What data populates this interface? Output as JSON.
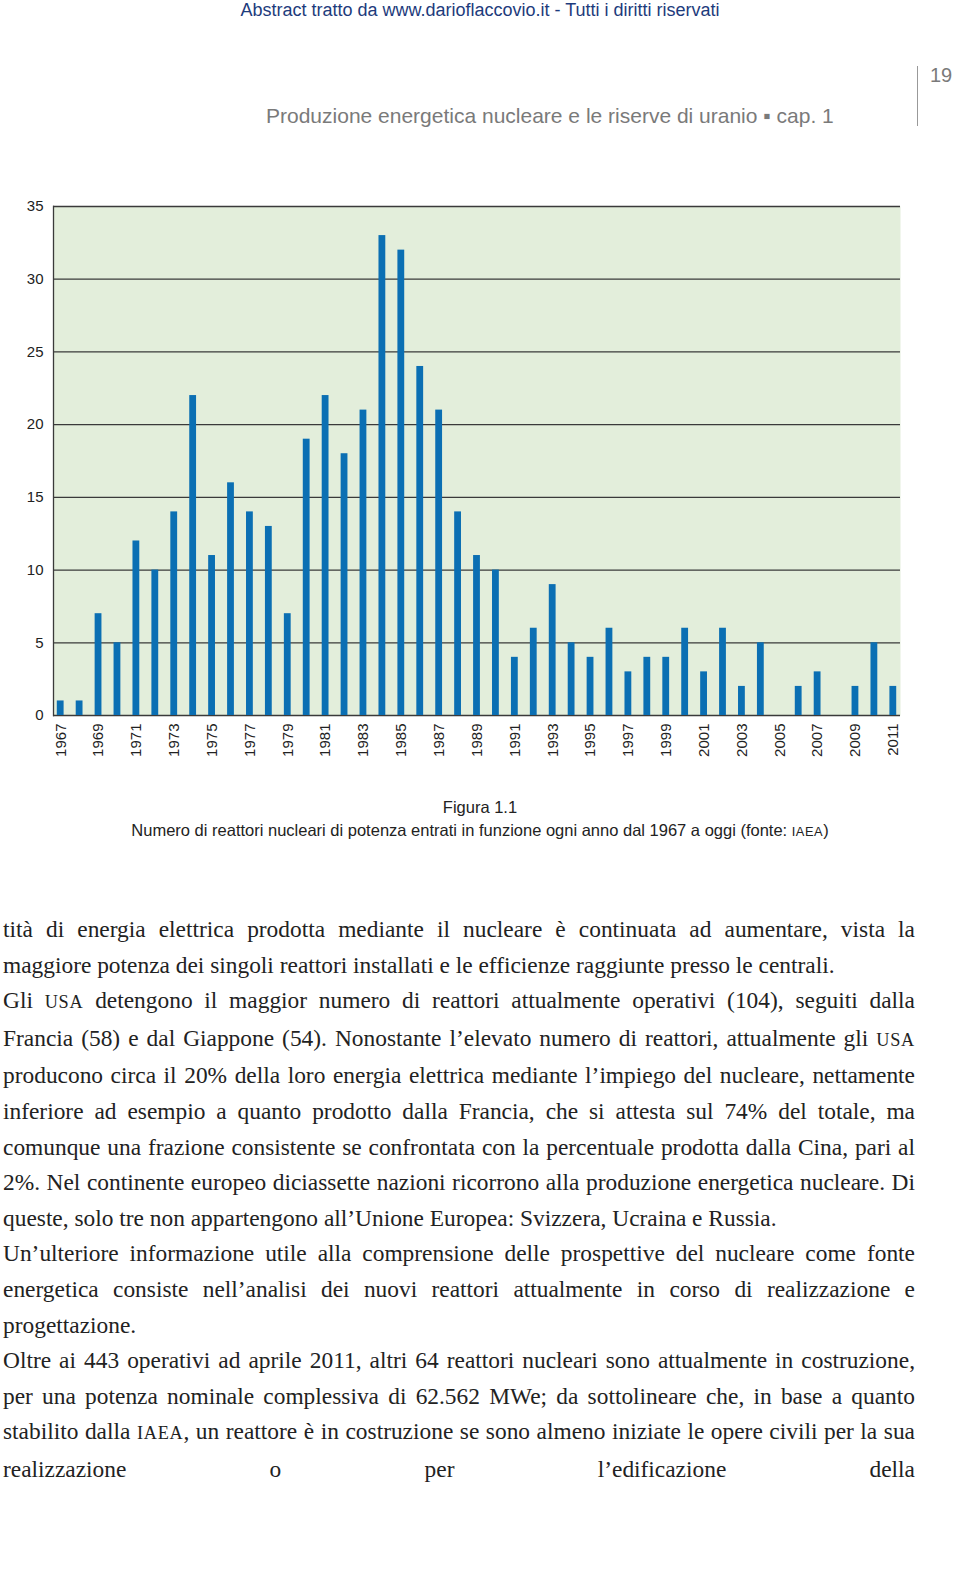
{
  "header": {
    "source": "Abstract tratto da www.darioflaccovio.it - Tutti i diritti riservati",
    "running_title": "Produzione energetica nucleare e le riserve di uranio ▪ cap. 1",
    "page_number": "19"
  },
  "chart_data": {
    "type": "bar",
    "color": "#0b6fb3",
    "grid": true,
    "categories": [
      "1967",
      null,
      "1969",
      null,
      "1971",
      null,
      "1973",
      null,
      "1975",
      null,
      "1977",
      null,
      "1979",
      null,
      "1981",
      null,
      "1983",
      null,
      "1985",
      null,
      "1987",
      null,
      "1989",
      null,
      "1991",
      null,
      "1993",
      null,
      "1995",
      null,
      "1997",
      null,
      "1999",
      null,
      "2001",
      null,
      "2003",
      null,
      "2005",
      null,
      "2007",
      null,
      "2009",
      null,
      "2011"
    ],
    "values": [
      1,
      1,
      7,
      5,
      12,
      10,
      14,
      22,
      11,
      16,
      14,
      13,
      7,
      19,
      22,
      18,
      21,
      33,
      32,
      24,
      21,
      14,
      11,
      10,
      4,
      6,
      9,
      5,
      4,
      6,
      3,
      4,
      4,
      6,
      3,
      6,
      2,
      5,
      0,
      2,
      3,
      0,
      2,
      5,
      2
    ],
    "ylim": [
      0,
      35
    ],
    "yticks": [
      0,
      5,
      10,
      15,
      20,
      25,
      30,
      35
    ]
  },
  "figure": {
    "label": "Figura 1.1",
    "caption": [
      "Numero di reattori nucleari di potenza entrati in funzione ogni anno dal 1967 a oggi (fonte: ",
      {
        "abbr": "IAEA"
      },
      ")"
    ]
  },
  "body": [
    [
      "tità di energia elettrica prodotta mediante il nucleare è continuata ad aumentare, vista la maggiore potenza dei singoli reattori installati e le efficienze raggiunte presso le centrali."
    ],
    [
      "Gli ",
      {
        "abbr": "USA"
      },
      " detengono il maggior numero di reattori attualmente operativi (104), seguiti dalla Francia (58) e dal Giappone (54). Nonostante l’elevato numero di reattori, attualmente gli ",
      {
        "abbr": "USA"
      },
      " producono circa il 20% della loro energia elettrica mediante l’impiego del nucleare, nettamente inferiore ad esempio a quanto prodotto dalla Francia, che si attesta sul 74% del totale, ma comunque una frazione consistente se confrontata con la percentuale prodotta dalla Cina, pari al 2%. Nel continente europeo diciassette nazioni ricorrono alla produzione energetica nucleare. Di queste, solo tre non appartengono all’Unione Europea: Svizzera, Ucraina e Russia."
    ],
    [
      "Un’ulteriore informazione utile alla comprensione delle prospettive del nucleare come fonte energetica consiste nell’analisi dei nuovi reattori attualmente in corso di realizzazione e progettazione."
    ],
    [
      "Oltre ai 443 operativi ad aprile 2011, altri 64 reattori nucleari sono attualmente in costruzione, per una potenza nominale complessiva di 62.562 MWe; da sottolineare che, in base a quanto stabilito dalla ",
      {
        "abbr": "IAEA"
      },
      ", un reattore è in costruzione se sono almeno iniziate le opere civili per la sua realizzazione o per l’edificazione della"
    ]
  ]
}
